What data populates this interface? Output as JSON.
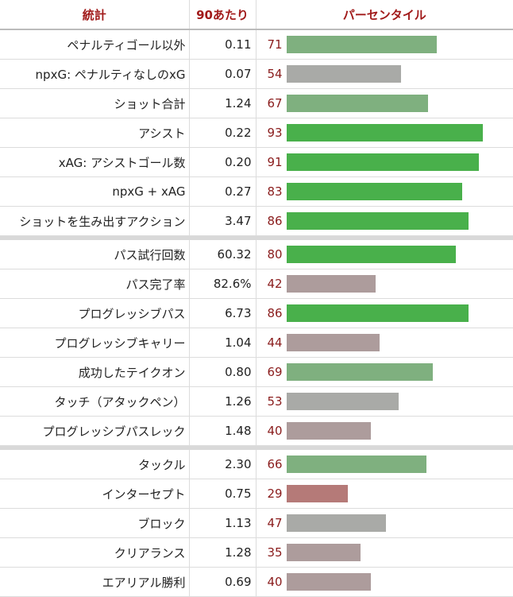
{
  "header": {
    "stat": "統計",
    "per90": "90あたり",
    "percentile": "パーセンタイル"
  },
  "colors": {
    "dark_green": "#49b04b",
    "light_green": "#7fb07f",
    "grey": "#a9aaa7",
    "mauve": "#ad9c9c",
    "red": "#b57a78"
  },
  "groups": [
    {
      "rows": [
        {
          "label": "ペナルティゴール以外",
          "value": "0.11",
          "pct": "71",
          "tier": "light_green"
        },
        {
          "label": "npxG: ペナルティなしのxG",
          "value": "0.07",
          "pct": "54",
          "tier": "grey"
        },
        {
          "label": "ショット合計",
          "value": "1.24",
          "pct": "67",
          "tier": "light_green"
        },
        {
          "label": "アシスト",
          "value": "0.22",
          "pct": "93",
          "tier": "dark_green"
        },
        {
          "label": "xAG: アシストゴール数",
          "value": "0.20",
          "pct": "91",
          "tier": "dark_green"
        },
        {
          "label": "npxG + xAG",
          "value": "0.27",
          "pct": "83",
          "tier": "dark_green"
        },
        {
          "label": "ショットを生み出すアクション",
          "value": "3.47",
          "pct": "86",
          "tier": "dark_green"
        }
      ]
    },
    {
      "rows": [
        {
          "label": "パス試行回数",
          "value": "60.32",
          "pct": "80",
          "tier": "dark_green"
        },
        {
          "label": "パス完了率",
          "value": "82.6%",
          "pct": "42",
          "tier": "mauve"
        },
        {
          "label": "プログレッシブパス",
          "value": "6.73",
          "pct": "86",
          "tier": "dark_green"
        },
        {
          "label": "プログレッシブキャリー",
          "value": "1.04",
          "pct": "44",
          "tier": "mauve"
        },
        {
          "label": "成功したテイクオン",
          "value": "0.80",
          "pct": "69",
          "tier": "light_green"
        },
        {
          "label": "タッチ（アタックペン）",
          "value": "1.26",
          "pct": "53",
          "tier": "grey"
        },
        {
          "label": "プログレッシブパスレック",
          "value": "1.48",
          "pct": "40",
          "tier": "mauve"
        }
      ]
    },
    {
      "rows": [
        {
          "label": "タックル",
          "value": "2.30",
          "pct": "66",
          "tier": "light_green"
        },
        {
          "label": "インターセプト",
          "value": "0.75",
          "pct": "29",
          "tier": "red"
        },
        {
          "label": "ブロック",
          "value": "1.13",
          "pct": "47",
          "tier": "grey"
        },
        {
          "label": "クリアランス",
          "value": "1.28",
          "pct": "35",
          "tier": "mauve"
        },
        {
          "label": "エアリアル勝利",
          "value": "0.69",
          "pct": "40",
          "tier": "mauve"
        }
      ]
    }
  ]
}
